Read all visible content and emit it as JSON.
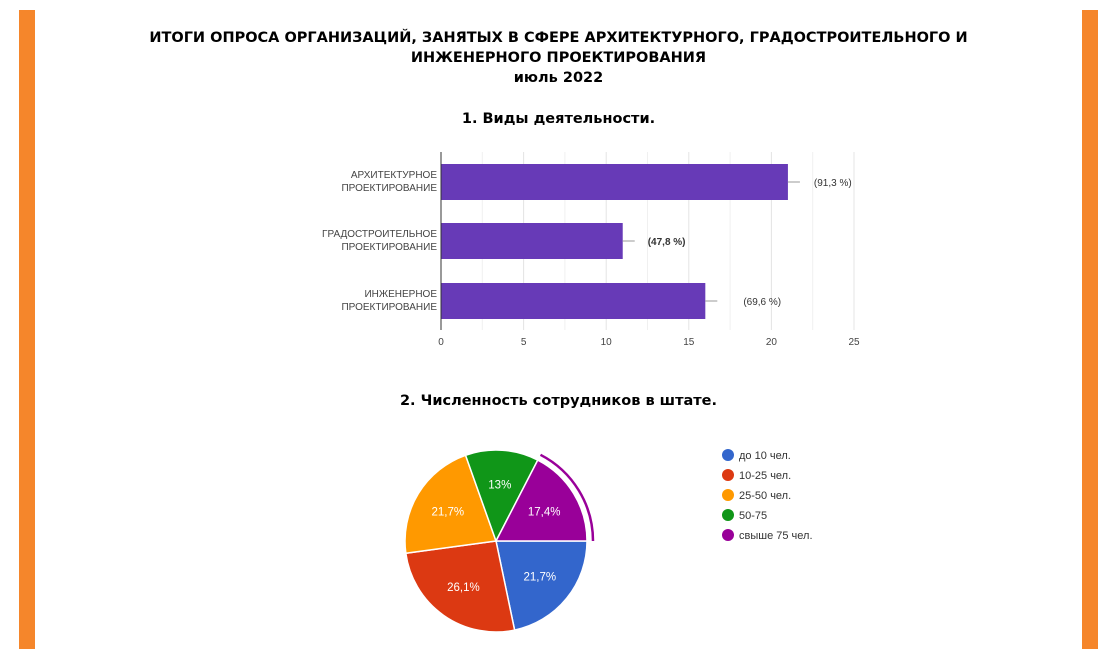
{
  "colors": {
    "accent": "#f5862b",
    "bar": "#673ab7"
  },
  "header": {
    "line1": "ИТОГИ ОПРОСА ОРГАНИЗАЦИЙ, ЗАНЯТЫХ В СФЕРЕ АРХИТЕКТУРНОГО, ГРАДОСТРОИТЕЛЬНОГО И",
    "line2": "ИНЖЕНЕРНОГО ПРОЕКТИРОВАНИЯ",
    "line3": "июль 2022"
  },
  "sections": {
    "s1": "1.  Виды деятельности.",
    "s2": "2.  Численность сотрудников в штате."
  },
  "chart_data": [
    {
      "type": "bar",
      "orientation": "horizontal",
      "title": "1.  Виды деятельности.",
      "categories": [
        [
          "АРХИТЕКТУРНОЕ",
          "ПРОЕКТИРОВАНИЕ"
        ],
        [
          "ГРАДОСТРОИТЕЛЬНОЕ",
          "ПРОЕКТИРОВАНИЕ"
        ],
        [
          "ИНЖЕНЕРНОЕ",
          "ПРОЕКТИРОВАНИЕ"
        ]
      ],
      "values": [
        21,
        11,
        16
      ],
      "data_labels": [
        "(91,3 %)",
        "(47,8 %)",
        "(69,6 %)"
      ],
      "xlim": [
        0,
        25
      ],
      "xticks": [
        0,
        5,
        10,
        15,
        20,
        25
      ],
      "grid": true,
      "color": "#673ab7"
    },
    {
      "type": "pie",
      "title": "2.  Численность сотрудников в штате.",
      "slices": [
        {
          "label": "до 10 чел.",
          "value": 21.7,
          "text": "21,7%",
          "color": "#3366cc"
        },
        {
          "label": "10-25 чел.",
          "value": 26.1,
          "text": "26,1%",
          "color": "#dc3912"
        },
        {
          "label": "25-50 чел.",
          "value": 21.7,
          "text": "21,7%",
          "color": "#ff9900"
        },
        {
          "label": "50-75",
          "value": 13,
          "text": "13%",
          "color": "#109618"
        },
        {
          "label": "свыше 75 чел.",
          "value": 17.4,
          "text": "17,4%",
          "color": "#990099"
        }
      ],
      "legend": "right",
      "highlighted": "свыше 75 чел."
    }
  ]
}
